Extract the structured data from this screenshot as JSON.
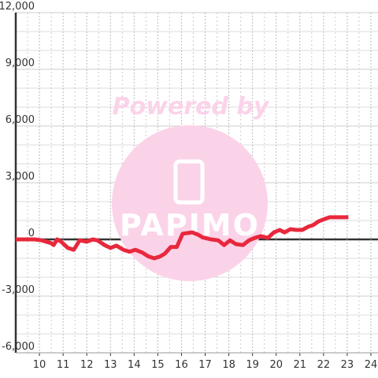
{
  "chart_data": {
    "type": "line",
    "x": [
      9.0,
      9.8,
      10.1,
      10.5,
      10.6,
      10.75,
      10.9,
      11.2,
      11.45,
      11.7,
      12.0,
      12.25,
      12.45,
      12.75,
      13.0,
      13.25,
      13.55,
      13.8,
      14.05,
      14.35,
      14.6,
      14.85,
      15.1,
      15.3,
      15.55,
      15.8,
      16.05,
      16.45,
      16.7,
      16.9,
      17.25,
      17.55,
      17.8,
      18.05,
      18.3,
      18.6,
      18.85,
      19.1,
      19.35,
      19.65,
      19.9,
      20.15,
      20.35,
      20.6,
      20.85,
      21.1,
      21.35,
      21.55,
      21.8,
      22.05,
      22.25,
      22.55,
      23.05
    ],
    "series": [
      {
        "color": "#e8283c",
        "values": [
          0,
          0,
          -50,
          -200,
          -300,
          0,
          -100,
          -450,
          -550,
          -50,
          -120,
          0,
          -50,
          -300,
          -450,
          -330,
          -550,
          -650,
          -550,
          -700,
          -900,
          -1000,
          -900,
          -750,
          -400,
          -400,
          300,
          370,
          250,
          100,
          0,
          -50,
          -300,
          -50,
          -250,
          -300,
          -50,
          80,
          170,
          80,
          370,
          500,
          370,
          540,
          500,
          500,
          670,
          750,
          960,
          1080,
          1170,
          1170,
          1170
        ]
      }
    ],
    "xlim": [
      9,
      24.3
    ],
    "xticks": [
      10,
      11,
      12,
      13,
      14,
      15,
      16,
      17,
      18,
      19,
      20,
      21,
      22,
      23,
      24
    ],
    "ylim": [
      -6000,
      12000
    ],
    "yticks": [
      {
        "value": -6000,
        "label": "-6,000"
      },
      {
        "value": -3000,
        "label": "-3,000"
      },
      0,
      {
        "value": 3000,
        "label": "3,000"
      },
      {
        "value": 6000,
        "label": "6,000"
      },
      {
        "value": 9000,
        "label": "9,000"
      },
      {
        "value": 12000,
        "label": "12,000"
      }
    ],
    "grid": true
  },
  "watermark": {
    "title": "Powered by",
    "logo": "PAPIMO"
  }
}
